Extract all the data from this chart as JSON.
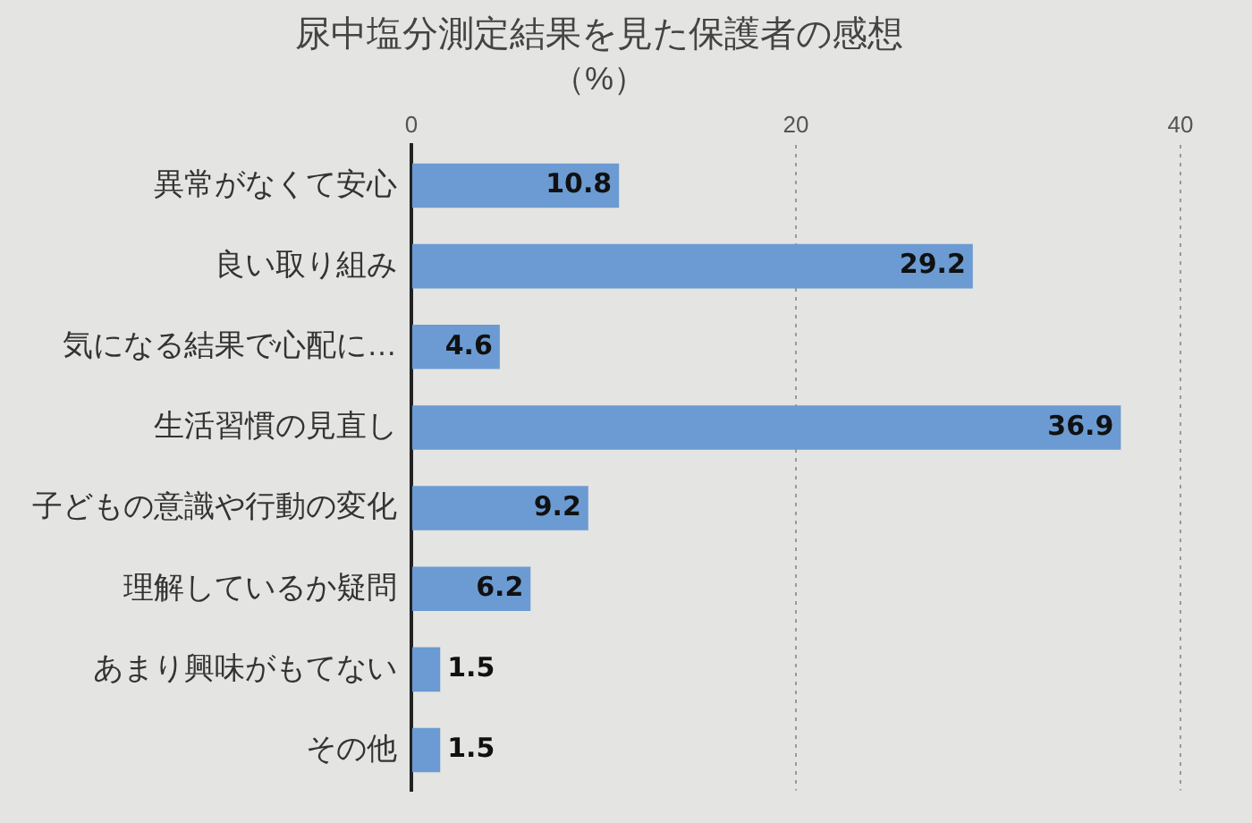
{
  "chart_data": {
    "type": "bar",
    "orientation": "horizontal",
    "title": "尿中塩分測定結果を見た保護者の感想",
    "subtitle": "（%）",
    "categories": [
      "異常がなくて安心",
      "良い取り組み",
      "気になる結果で心配に…",
      "生活習慣の見直し",
      "子どもの意識や行動の変化",
      "理解しているか疑問",
      "あまり興味がもてない",
      "その他"
    ],
    "values": [
      10.8,
      29.2,
      4.6,
      36.9,
      9.2,
      6.2,
      1.5,
      1.5
    ],
    "color": "#6b9bd2",
    "xlim": [
      0,
      40
    ],
    "xticks": [
      0,
      20,
      40
    ],
    "grid": "x",
    "data_labels": true,
    "legend": false
  }
}
